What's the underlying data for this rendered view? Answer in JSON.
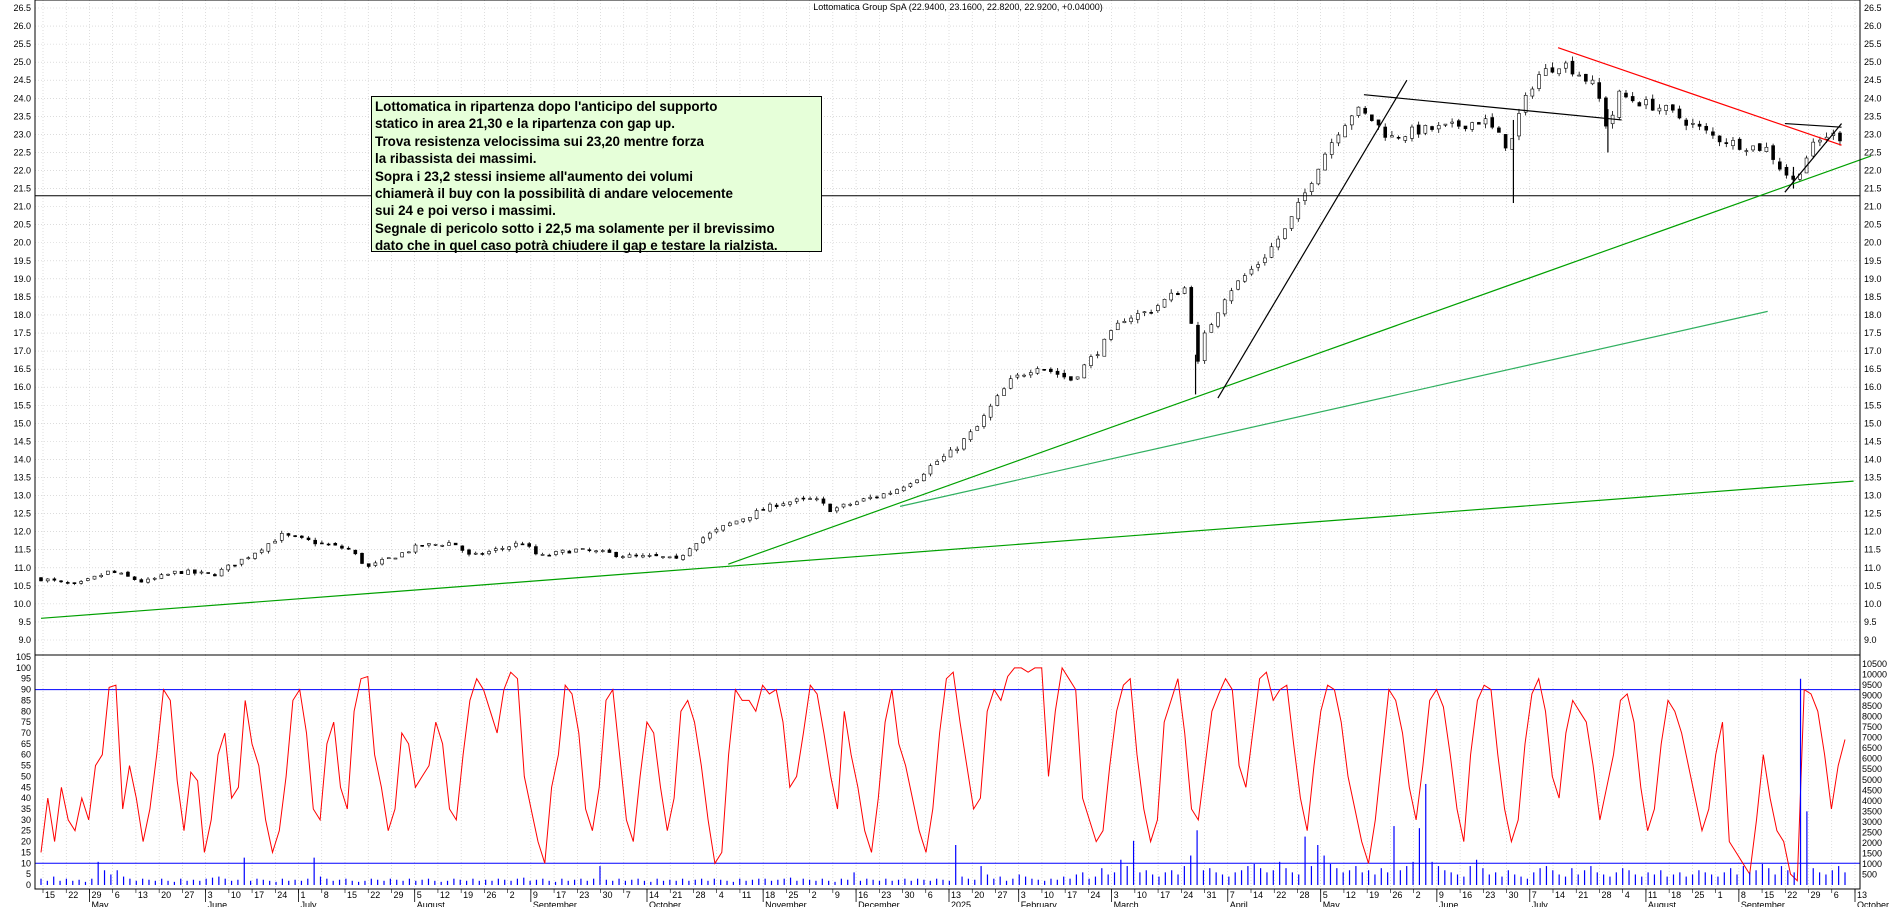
{
  "chart_data": [
    {
      "type": "candlestick",
      "title": "Lottomatica Group SpA (22.9400, 23.1600, 22.8200, 22.9200, +0.04000)",
      "ylim": [
        9.0,
        26.5
      ],
      "yticks": [
        "9.0",
        "9.5",
        "10.0",
        "10.5",
        "11.0",
        "11.5",
        "12.0",
        "12.5",
        "13.0",
        "13.5",
        "14.0",
        "14.5",
        "15.0",
        "15.5",
        "16.0",
        "16.5",
        "17.0",
        "17.5",
        "18.0",
        "18.5",
        "19.0",
        "19.5",
        "20.0",
        "20.5",
        "21.0",
        "21.5",
        "22.0",
        "22.5",
        "23.0",
        "23.5",
        "24.0",
        "24.5",
        "25.0",
        "25.5",
        "26.0",
        "26.5"
      ],
      "grid": true,
      "price_anchors": [
        [
          0,
          10.7
        ],
        [
          20,
          10.5
        ],
        [
          40,
          10.9
        ],
        [
          60,
          10.6
        ],
        [
          80,
          10.9
        ],
        [
          100,
          10.8
        ],
        [
          120,
          11.3
        ],
        [
          140,
          11.9
        ],
        [
          160,
          11.7
        ],
        [
          180,
          11.5
        ],
        [
          190,
          11.0
        ],
        [
          205,
          11.3
        ],
        [
          220,
          11.6
        ],
        [
          240,
          11.7
        ],
        [
          250,
          11.3
        ],
        [
          265,
          11.5
        ],
        [
          280,
          11.7
        ],
        [
          290,
          11.3
        ],
        [
          310,
          11.5
        ],
        [
          330,
          11.4
        ],
        [
          345,
          11.3
        ],
        [
          360,
          11.3
        ],
        [
          370,
          11.2
        ],
        [
          380,
          11.7
        ],
        [
          400,
          12.2
        ],
        [
          415,
          12.5
        ],
        [
          430,
          12.8
        ],
        [
          450,
          12.9
        ],
        [
          460,
          12.6
        ],
        [
          480,
          12.9
        ],
        [
          495,
          13.1
        ],
        [
          510,
          13.5
        ],
        [
          520,
          13.9
        ],
        [
          530,
          14.2
        ],
        [
          545,
          14.9
        ],
        [
          555,
          15.6
        ],
        [
          565,
          16.2
        ],
        [
          580,
          16.6
        ],
        [
          600,
          16.2
        ],
        [
          615,
          17.0
        ],
        [
          630,
          17.9
        ],
        [
          645,
          18.1
        ],
        [
          660,
          18.6
        ],
        [
          668,
          18.8
        ],
        [
          672,
          16.3
        ],
        [
          676,
          17.3
        ],
        [
          690,
          18.6
        ],
        [
          710,
          19.5
        ],
        [
          725,
          20.4
        ],
        [
          735,
          21.3
        ],
        [
          745,
          22.3
        ],
        [
          755,
          23.1
        ],
        [
          765,
          23.7
        ],
        [
          775,
          23.4
        ],
        [
          785,
          22.9
        ],
        [
          800,
          23.1
        ],
        [
          820,
          23.2
        ],
        [
          840,
          23.4
        ],
        [
          855,
          22.6
        ],
        [
          860,
          23.5
        ],
        [
          870,
          24.6
        ],
        [
          885,
          25.0
        ],
        [
          895,
          24.7
        ],
        [
          905,
          24.3
        ],
        [
          912,
          23.1
        ],
        [
          918,
          24.1
        ],
        [
          930,
          23.9
        ],
        [
          945,
          23.7
        ],
        [
          960,
          23.3
        ],
        [
          975,
          22.9
        ],
        [
          990,
          22.7
        ],
        [
          1005,
          22.6
        ],
        [
          1012,
          22.1
        ],
        [
          1020,
          21.7
        ],
        [
          1030,
          22.6
        ],
        [
          1040,
          23.0
        ],
        [
          1050,
          22.9
        ]
      ],
      "wicks": [
        [
          672,
          15.8,
          16.9
        ],
        [
          857,
          21.1,
          23.4
        ],
        [
          912,
          22.5,
          23.7
        ],
        [
          1020,
          21.5,
          22.1
        ]
      ],
      "horizontal_line": 21.3,
      "trendlines": [
        {
          "color": "#00a000",
          "from": [
            0,
            9.6
          ],
          "to": [
            1055,
            13.4
          ]
        },
        {
          "color": "#00a000",
          "from": [
            400,
            11.1
          ],
          "to": [
            1065,
            22.4
          ]
        },
        {
          "color": "#30b060",
          "from": [
            500,
            12.7
          ],
          "to": [
            1005,
            18.1
          ]
        },
        {
          "color": "#000000",
          "from": [
            685,
            15.7
          ],
          "to": [
            795,
            24.5
          ]
        },
        {
          "color": "#000000",
          "from": [
            770,
            24.1
          ],
          "to": [
            920,
            23.4
          ]
        },
        {
          "color": "#ff0000",
          "from": [
            883,
            25.4
          ],
          "to": [
            1048,
            22.7
          ]
        },
        {
          "color": "#000000",
          "from": [
            1015,
            21.4
          ],
          "to": [
            1048,
            23.3
          ]
        },
        {
          "color": "#000000",
          "from": [
            1015,
            23.3
          ],
          "to": [
            1048,
            23.2
          ]
        }
      ],
      "annotation": [
        "Lottomatica in ripartenza dopo l'anticipo del supporto",
        "statico in area 21,30 e la ripartenza con gap up.",
        "Trova resistenza velocissima sui 23,20 mentre forza",
        "la ribassista dei massimi.",
        "Sopra i 23,2 stessi insieme all'aumento dei volumi",
        "chiamerà il buy  con la possibilità di andare velocemente",
        "sui 24 e poi verso i massimi.",
        "Segnale di pericolo sotto i 22,5 ma solamente per il brevissimo",
        "dato che in quel caso potrà chiudere il gap e testare la rialzista."
      ]
    },
    {
      "type": "line",
      "ylim": [
        0,
        105
      ],
      "yticks": [
        "0",
        "5",
        "10",
        "15",
        "20",
        "25",
        "30",
        "35",
        "40",
        "45",
        "50",
        "55",
        "60",
        "65",
        "70",
        "75",
        "80",
        "85",
        "90",
        "95",
        "100",
        "105"
      ],
      "horizontal_lines": [
        90,
        10
      ],
      "series": [
        {
          "values": [
            15,
            40,
            20,
            45,
            30,
            25,
            40,
            30,
            55,
            60,
            91,
            92,
            35,
            55,
            40,
            20,
            35,
            60,
            90,
            85,
            48,
            25,
            52,
            48,
            15,
            30,
            60,
            70,
            40,
            45,
            85,
            65,
            55,
            30,
            15,
            25,
            50,
            85,
            90,
            70,
            35,
            30,
            65,
            75,
            45,
            35,
            80,
            95,
            96,
            60,
            45,
            25,
            35,
            70,
            65,
            45,
            50,
            55,
            75,
            65,
            35,
            30,
            60,
            85,
            95,
            90,
            80,
            70,
            90,
            98,
            95,
            50,
            35,
            20,
            10,
            45,
            60,
            92,
            88,
            70,
            35,
            25,
            45,
            85,
            90,
            60,
            30,
            20,
            50,
            75,
            70,
            45,
            25,
            40,
            80,
            85,
            75,
            55,
            30,
            10,
            15,
            60,
            90,
            85,
            85,
            80,
            92,
            88,
            90,
            75,
            45,
            50,
            70,
            92,
            88,
            70,
            50,
            35,
            80,
            60,
            45,
            25,
            15,
            40,
            75,
            90,
            65,
            55,
            40,
            25,
            15,
            35,
            70,
            95,
            98,
            75,
            55,
            35,
            40,
            80,
            90,
            85,
            96,
            100,
            100,
            98,
            100,
            100,
            50,
            80,
            100,
            95,
            90,
            40,
            30,
            20,
            25,
            55,
            80,
            92,
            95,
            60,
            35,
            20,
            30,
            75,
            85,
            95,
            70,
            35,
            30,
            55,
            80,
            88,
            95,
            90,
            55,
            45,
            70,
            95,
            98,
            85,
            90,
            92,
            65,
            40,
            25,
            55,
            80,
            92,
            90,
            75,
            50,
            35,
            20,
            10,
            30,
            60,
            90,
            85,
            70,
            45,
            30,
            55,
            85,
            90,
            82,
            60,
            35,
            20,
            60,
            85,
            92,
            90,
            60,
            35,
            20,
            30,
            65,
            88,
            95,
            80,
            50,
            40,
            70,
            85,
            80,
            75,
            55,
            30,
            45,
            60,
            85,
            88,
            75,
            45,
            25,
            35,
            65,
            85,
            80,
            70,
            55,
            40,
            25,
            35,
            60,
            75,
            20,
            15,
            10,
            5,
            30,
            60,
            40,
            25,
            20,
            5,
            2,
            90,
            88,
            80,
            60,
            35,
            55,
            67
          ]
        }
      ]
    },
    {
      "type": "bar",
      "ylim": [
        0,
        10500
      ],
      "yticks": [
        "500",
        "1000",
        "1500",
        "2000",
        "2500",
        "3000",
        "3500",
        "4000",
        "4500",
        "5000",
        "5500",
        "6000",
        "6500",
        "7000",
        "7500",
        "8000",
        "8500",
        "9000",
        "9500",
        "10000",
        "10500"
      ],
      "values": [
        300,
        200,
        400,
        200,
        300,
        200,
        250,
        150,
        300,
        1100,
        700,
        500,
        700,
        400,
        300,
        200,
        300,
        250,
        200,
        300,
        200,
        150,
        300,
        200,
        250,
        200,
        300,
        350,
        400,
        300,
        200,
        250,
        1300,
        200,
        300,
        250,
        200,
        150,
        300,
        200,
        250,
        200,
        300,
        1300,
        400,
        300,
        200,
        250,
        300,
        200,
        150,
        200,
        300,
        250,
        200,
        300,
        250,
        200,
        300,
        200,
        250,
        300,
        200,
        150,
        200,
        300,
        250,
        200,
        300,
        200,
        250,
        200,
        300,
        250,
        200,
        300,
        350,
        200,
        250,
        300,
        200,
        150,
        300,
        200,
        250,
        300,
        200,
        300,
        900,
        250,
        200,
        300,
        200,
        250,
        300,
        200,
        150,
        300,
        200,
        250,
        200,
        300,
        200,
        250,
        300,
        200,
        300,
        250,
        200,
        150,
        300,
        200,
        250,
        300,
        300,
        200,
        250,
        300,
        350,
        200,
        300,
        250,
        200,
        300,
        200,
        150,
        300,
        250,
        600,
        200,
        300,
        250,
        200,
        300,
        200,
        250,
        300,
        200,
        300,
        250,
        200,
        300,
        250,
        200,
        1900,
        400,
        300,
        250,
        900,
        500,
        300,
        400,
        200,
        300,
        500,
        400,
        300,
        250,
        200,
        300,
        250,
        400,
        300,
        500,
        600,
        300,
        400,
        800,
        500,
        600,
        1200,
        900,
        2100,
        600,
        700,
        500,
        400,
        600,
        700,
        500,
        900,
        1400,
        2600,
        700,
        800,
        600,
        500,
        400,
        600,
        700,
        900,
        1000,
        800,
        600,
        700,
        1100,
        800,
        600,
        500,
        2300,
        900,
        1900,
        1400,
        1000,
        800,
        600,
        700,
        900,
        600,
        700,
        500,
        800,
        600,
        2800,
        700,
        900,
        1100,
        2700,
        4800,
        1100,
        900,
        700,
        600,
        500,
        400,
        900,
        1200,
        800,
        500,
        600,
        400,
        700,
        500,
        400,
        300,
        600,
        800,
        900,
        700,
        500,
        400,
        800,
        500,
        700,
        900,
        600,
        500,
        400,
        600,
        800,
        700,
        500,
        400,
        600,
        500,
        700,
        400,
        500,
        600,
        400,
        500,
        700,
        600,
        500,
        400,
        600,
        800,
        500,
        900,
        600,
        700,
        1000,
        800,
        500,
        900,
        700,
        600,
        9800,
        3500,
        800,
        600,
        500,
        700,
        900,
        600
      ]
    }
  ],
  "x_axis": {
    "days": [
      "15",
      "22",
      "29",
      "6",
      "13",
      "20",
      "27",
      "3",
      "10",
      "17",
      "24",
      "1",
      "8",
      "15",
      "22",
      "29",
      "5",
      "12",
      "19",
      "26",
      "2",
      "9",
      "17",
      "23",
      "30",
      "7",
      "14",
      "21",
      "28",
      "4",
      "11",
      "18",
      "25",
      "2",
      "9",
      "16",
      "23",
      "30",
      "6",
      "13",
      "20",
      "27",
      "3",
      "10",
      "17",
      "24",
      "3",
      "10",
      "17",
      "24",
      "31",
      "7",
      "14",
      "22",
      "28",
      "5",
      "12",
      "19",
      "26",
      "2",
      "9",
      "16",
      "23",
      "30",
      "7",
      "14",
      "21",
      "28",
      "4",
      "11",
      "18",
      "25",
      "1",
      "8",
      "15",
      "22",
      "29",
      "6",
      "13"
    ],
    "months": [
      {
        "label": "May",
        "i": 2
      },
      {
        "label": "June",
        "i": 7
      },
      {
        "label": "July",
        "i": 11
      },
      {
        "label": "August",
        "i": 16
      },
      {
        "label": "September",
        "i": 21
      },
      {
        "label": "October",
        "i": 26
      },
      {
        "label": "November",
        "i": 31
      },
      {
        "label": "December",
        "i": 35
      },
      {
        "label": "2025",
        "i": 39
      },
      {
        "label": "February",
        "i": 42
      },
      {
        "label": "March",
        "i": 46
      },
      {
        "label": "April",
        "i": 51
      },
      {
        "label": "May",
        "i": 55
      },
      {
        "label": "June",
        "i": 60
      },
      {
        "label": "July",
        "i": 64
      },
      {
        "label": "August",
        "i": 69
      },
      {
        "label": "September",
        "i": 73
      },
      {
        "label": "October",
        "i": 78
      }
    ]
  }
}
